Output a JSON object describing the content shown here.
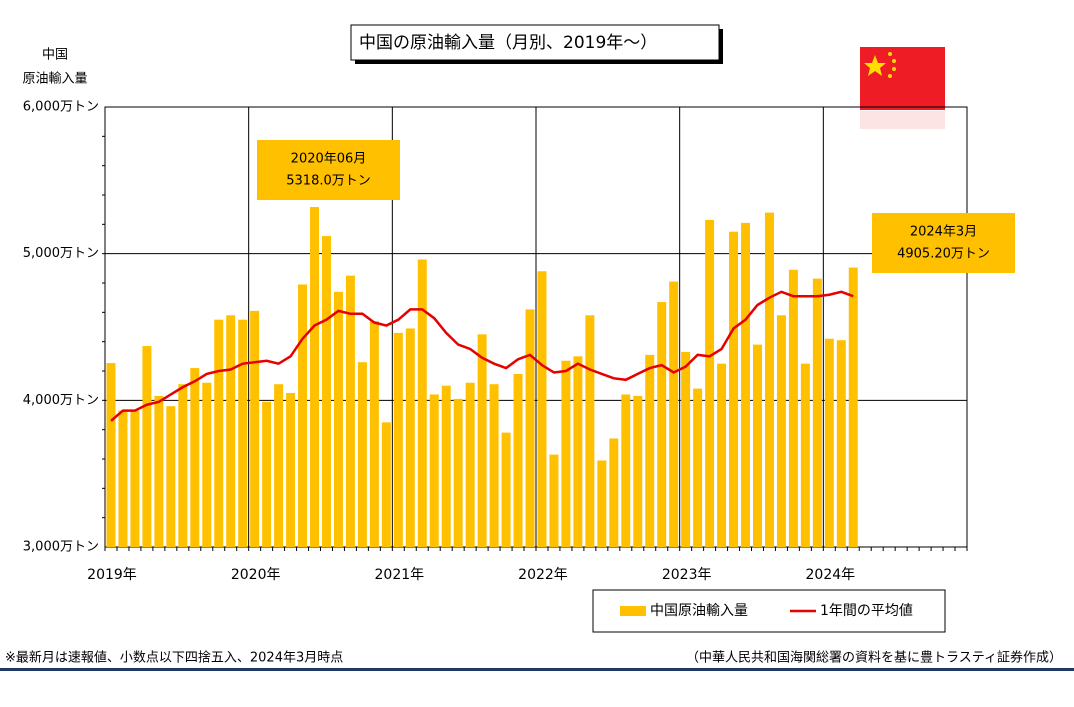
{
  "chart_data": {
    "type": "bar",
    "title": "中国の原油輸入量（月別、2019年～）",
    "ylabel": [
      "中国",
      "原油輸入量"
    ],
    "categories": [
      "2019年",
      null,
      null,
      null,
      null,
      null,
      null,
      null,
      null,
      null,
      null,
      null,
      "2020年",
      null,
      null,
      null,
      null,
      null,
      null,
      null,
      null,
      null,
      null,
      null,
      "2021年",
      null,
      null,
      null,
      null,
      null,
      null,
      null,
      null,
      null,
      null,
      null,
      "2022年",
      null,
      null,
      null,
      null,
      null,
      null,
      null,
      null,
      null,
      null,
      null,
      "2023年",
      null,
      null,
      null,
      null,
      null,
      null,
      null,
      null,
      null,
      null,
      null,
      "2024年",
      null,
      null
    ],
    "series": [
      {
        "name": "中国原油輸入量",
        "type": "bar",
        "color": "#FFC000",
        "values": [
          4254,
          3930,
          3930,
          4370,
          4030,
          3960,
          4110,
          4220,
          4120,
          4550,
          4580,
          4550,
          4610,
          3990,
          4110,
          4050,
          4790,
          5318,
          5120,
          4740,
          4850,
          4260,
          4540,
          3850,
          4460,
          4490,
          4960,
          4040,
          4100,
          4010,
          4120,
          4450,
          4110,
          3780,
          4180,
          4620,
          4880,
          3630,
          4270,
          4300,
          4580,
          3590,
          3740,
          4040,
          4030,
          4310,
          4670,
          4810,
          4330,
          4080,
          5230,
          4250,
          5150,
          5210,
          4380,
          5280,
          4580,
          4890,
          4250,
          4830,
          4420,
          4410,
          4905.2
        ]
      },
      {
        "name": "1年間の平均値",
        "type": "line",
        "color": "#E60000",
        "values": [
          3860,
          3930,
          3930,
          3970,
          3990,
          4040,
          4090,
          4130,
          4180,
          4200,
          4210,
          4250,
          4260,
          4270,
          4250,
          4300,
          4420,
          4510,
          4550,
          4610,
          4590,
          4590,
          4530,
          4510,
          4550,
          4620,
          4620,
          4560,
          4460,
          4380,
          4350,
          4290,
          4250,
          4220,
          4280,
          4310,
          4240,
          4190,
          4200,
          4250,
          4210,
          4180,
          4150,
          4140,
          4180,
          4220,
          4240,
          4190,
          4230,
          4310,
          4300,
          4350,
          4490,
          4550,
          4650,
          4700,
          4740,
          4710,
          4710,
          4710,
          4720,
          4740,
          4710
        ]
      }
    ],
    "ylim": [
      3000,
      6000
    ],
    "yticks": [
      {
        "value": 3000,
        "label": "3,000万トン"
      },
      {
        "value": 4000,
        "label": "4,000万トン"
      },
      {
        "value": 5000,
        "label": "5,000万トン"
      },
      {
        "value": 6000,
        "label": "6,000万トン"
      }
    ],
    "grid": true,
    "annotations": [
      {
        "lines": [
          "2020年06月",
          "5318.0万トン"
        ],
        "index": 17
      },
      {
        "lines": [
          "2024年3月",
          "4905.20万トン"
        ],
        "index": 62
      }
    ],
    "footnote_left": "※最新月は速報値、小数点以下四捨五入、2024年3月時点",
    "footnote_right": "（中華人民共和国海関総署の資料を基に豊トラスティ証券作成）"
  }
}
